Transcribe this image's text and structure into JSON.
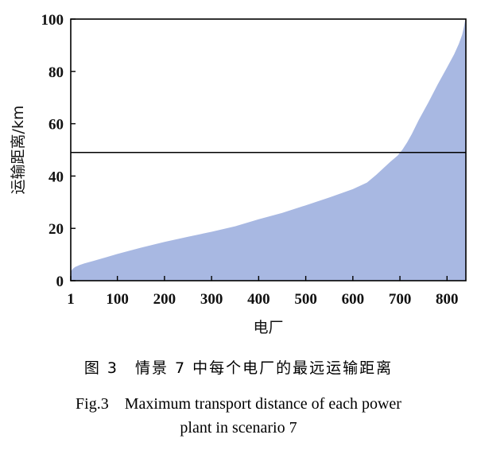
{
  "chart_data": {
    "type": "area",
    "xlabel": "电厂",
    "ylabel": "运输距离/km",
    "xlim": [
      1,
      840
    ],
    "ylim": [
      0,
      100
    ],
    "x_ticks": [
      1,
      100,
      200,
      300,
      400,
      500,
      600,
      700,
      800
    ],
    "y_ticks": [
      0,
      20,
      40,
      60,
      80,
      100
    ],
    "grid": false,
    "fill_color": "#a8b8e2",
    "series": [
      {
        "x": [
          1,
          5,
          10,
          20,
          30,
          50,
          75,
          100,
          150,
          200,
          250,
          300,
          350,
          400,
          450,
          500,
          550,
          600,
          630,
          650,
          665,
          680,
          695,
          705,
          715,
          725,
          740,
          760,
          780,
          800,
          815,
          825,
          832,
          836,
          838,
          840
        ],
        "values": [
          3.5,
          4.5,
          5.2,
          6.0,
          6.6,
          7.6,
          8.9,
          10.2,
          12.6,
          14.8,
          16.8,
          18.7,
          20.8,
          23.5,
          25.9,
          28.8,
          31.8,
          35.0,
          37.5,
          40.5,
          43.0,
          45.5,
          47.8,
          50.0,
          52.8,
          56.0,
          61.5,
          68.0,
          75.0,
          81.5,
          86.5,
          90.5,
          94.0,
          97.0,
          99.0,
          100.0
        ]
      }
    ],
    "reference_line": {
      "y": 49
    }
  },
  "caption": {
    "cn": "图 3　情景 7 中每个电厂的最远运输距离",
    "en_line1": "Fig.3　Maximum transport distance of each power",
    "en_line2": "plant in scenario 7"
  }
}
